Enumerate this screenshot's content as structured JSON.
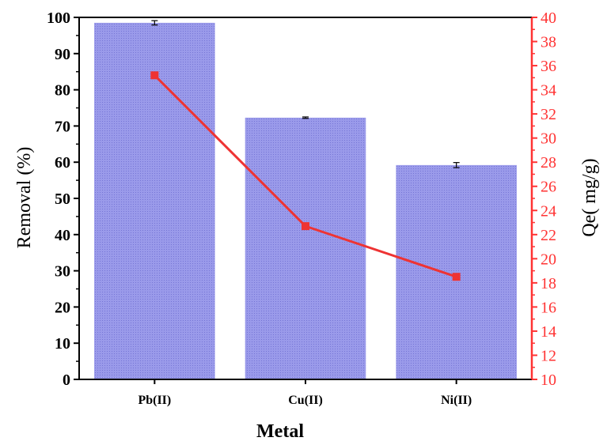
{
  "chart_data": {
    "type": "bar",
    "categories": [
      "Pb(II)",
      "Cu(II)",
      "Ni(II)"
    ],
    "series": [
      {
        "axis": "left",
        "kind": "bar",
        "values": [
          98.5,
          72.3,
          59.2
        ],
        "errors": [
          0.6,
          0.2,
          0.7
        ],
        "color": "#8e8ee6"
      },
      {
        "axis": "right",
        "kind": "line",
        "values": [
          35.2,
          22.7,
          18.5
        ],
        "color": "#ee3333"
      }
    ],
    "xlabel": "Metal",
    "ylabel": "Removal (%)",
    "ylabel2": "Qe( mg/g)",
    "ylim": [
      0,
      100
    ],
    "ylim2": [
      10,
      40
    ],
    "yticks": [
      "0",
      "10",
      "20",
      "30",
      "40",
      "50",
      "60",
      "70",
      "80",
      "90",
      "100"
    ],
    "yticks2": [
      "10",
      "12",
      "14",
      "16",
      "18",
      "20",
      "22",
      "24",
      "26",
      "28",
      "30",
      "32",
      "34",
      "36",
      "38",
      "40"
    ],
    "grid": false,
    "legend": "none",
    "right_axis_color": "#ff3333"
  }
}
